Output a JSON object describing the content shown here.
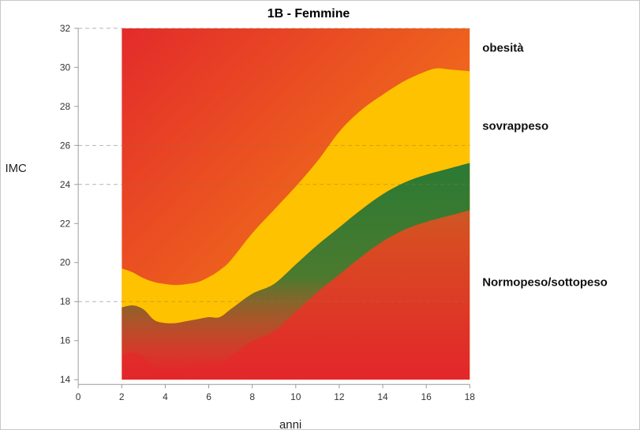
{
  "chart_data": {
    "type": "area",
    "title": "1B - Femmine",
    "xlabel": "anni",
    "ylabel": "IMC",
    "xlim": [
      0,
      18
    ],
    "ylim": [
      14,
      32
    ],
    "x_ticks": [
      0,
      2,
      4,
      6,
      8,
      10,
      12,
      14,
      16,
      18
    ],
    "y_ticks": [
      14,
      16,
      18,
      20,
      22,
      24,
      26,
      28,
      30,
      32
    ],
    "reference_lines": [
      32,
      26,
      24,
      18
    ],
    "zones": [
      {
        "label": "obesità",
        "color": "#f07a12",
        "label_y": 31
      },
      {
        "label": "sovrappeso",
        "color": "#fec200",
        "label_y": 27
      },
      {
        "label": "Normopeso/sottopeso",
        "color": "#2c7a32",
        "label_y": 19
      }
    ],
    "series": [
      {
        "name": "sovrappeso",
        "x": [
          2,
          2.5,
          3,
          3.5,
          4,
          4.5,
          5,
          5.5,
          6,
          6.5,
          7,
          8,
          9,
          10,
          11,
          12,
          13,
          14,
          15,
          16,
          16.5,
          17,
          18
        ],
        "values": [
          19.7,
          19.5,
          19.2,
          19.0,
          18.9,
          18.85,
          18.9,
          19.0,
          19.25,
          19.6,
          20.1,
          21.5,
          22.7,
          23.9,
          25.2,
          26.7,
          27.8,
          28.6,
          29.3,
          29.8,
          29.95,
          29.9,
          29.8
        ]
      },
      {
        "name": "Normopeso/sottopeso",
        "x": [
          2,
          2.5,
          3,
          3.5,
          4,
          4.5,
          5,
          5.5,
          6,
          6.5,
          7,
          8,
          9,
          10,
          11,
          12,
          13,
          14,
          15,
          16,
          17,
          18
        ],
        "values": [
          17.7,
          17.8,
          17.6,
          17.05,
          16.9,
          16.9,
          17.0,
          17.1,
          17.2,
          17.2,
          17.6,
          18.4,
          18.9,
          19.9,
          20.9,
          21.8,
          22.7,
          23.5,
          24.1,
          24.5,
          24.8,
          25.1
        ]
      }
    ]
  }
}
